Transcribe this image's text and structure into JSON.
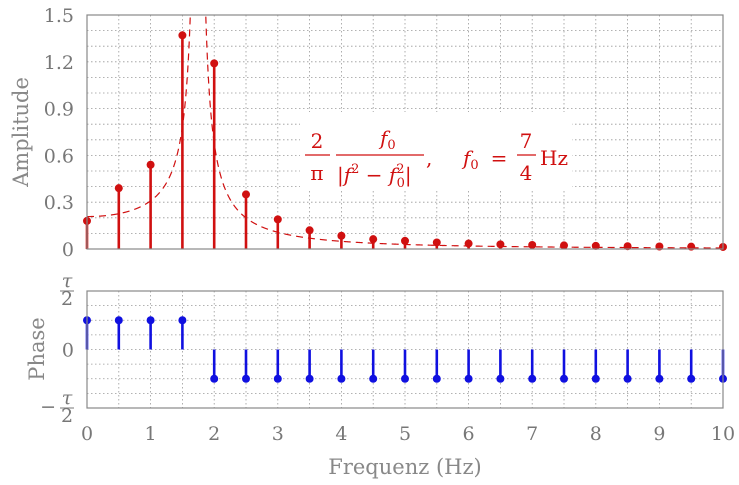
{
  "chart_data": [
    {
      "type": "line",
      "name": "amplitude",
      "ylabel": "Amplitude",
      "xlim": [
        0,
        10
      ],
      "ylim": [
        0,
        1.5
      ],
      "yticks": [
        "0",
        "0.3",
        "0.6",
        "0.9",
        "1.2",
        "1.5"
      ],
      "grid": true,
      "stems": {
        "x": [
          0,
          0.5,
          1,
          1.5,
          2,
          2.5,
          3,
          3.5,
          4,
          4.5,
          5,
          5.5,
          6,
          6.5,
          7,
          7.5,
          8,
          8.5,
          9,
          9.5,
          10
        ],
        "y": [
          0.18,
          0.39,
          0.54,
          1.37,
          1.19,
          0.35,
          0.19,
          0.12,
          0.085,
          0.063,
          0.052,
          0.042,
          0.035,
          0.03,
          0.026,
          0.023,
          0.02,
          0.018,
          0.016,
          0.015,
          0.013
        ],
        "color": "#d01010"
      },
      "curve": {
        "formula": "2/(pi*|f^2 - f0^2|)",
        "f0": 1.75,
        "style": "dashed",
        "color": "#d01010"
      },
      "annotation": {
        "num": "2",
        "pi": "π",
        "frac_num": "f",
        "frac_num_sub": "0",
        "den_left": "|f",
        "den_sup": "2",
        "den_mid": " − f",
        "den_sub": "0",
        "den_sup2": "2",
        "den_right": "|",
        "comma": ",",
        "f0_label": "f",
        "f0_sub": "0",
        "eq": "=",
        "seven": "7",
        "four": "4",
        "unit": "Hz"
      }
    },
    {
      "type": "line",
      "name": "phase",
      "ylabel": "Phase",
      "xlabel": "Frequenz (Hz)",
      "xlim": [
        0,
        10
      ],
      "xticks": [
        "0",
        "1",
        "2",
        "3",
        "4",
        "5",
        "6",
        "7",
        "8",
        "9",
        "10"
      ],
      "ylim": [
        -0.5,
        0.5
      ],
      "yticks": [
        {
          "value": 0.5,
          "num": "τ",
          "den": "2",
          "sign": ""
        },
        {
          "value": 0,
          "label": "0"
        },
        {
          "value": -0.5,
          "num": "τ",
          "den": "2",
          "sign": "−"
        }
      ],
      "grid": true,
      "stems": {
        "x": [
          0,
          0.5,
          1,
          1.5,
          2,
          2.5,
          3,
          3.5,
          4,
          4.5,
          5,
          5.5,
          6,
          6.5,
          7,
          7.5,
          8,
          8.5,
          9,
          9.5,
          10
        ],
        "y": [
          0.25,
          0.25,
          0.25,
          0.25,
          -0.25,
          -0.25,
          -0.25,
          -0.25,
          -0.25,
          -0.25,
          -0.25,
          -0.25,
          -0.25,
          -0.25,
          -0.25,
          -0.25,
          -0.25,
          -0.25,
          -0.25,
          -0.25,
          -0.25
        ],
        "color": "#1010e0"
      }
    }
  ]
}
